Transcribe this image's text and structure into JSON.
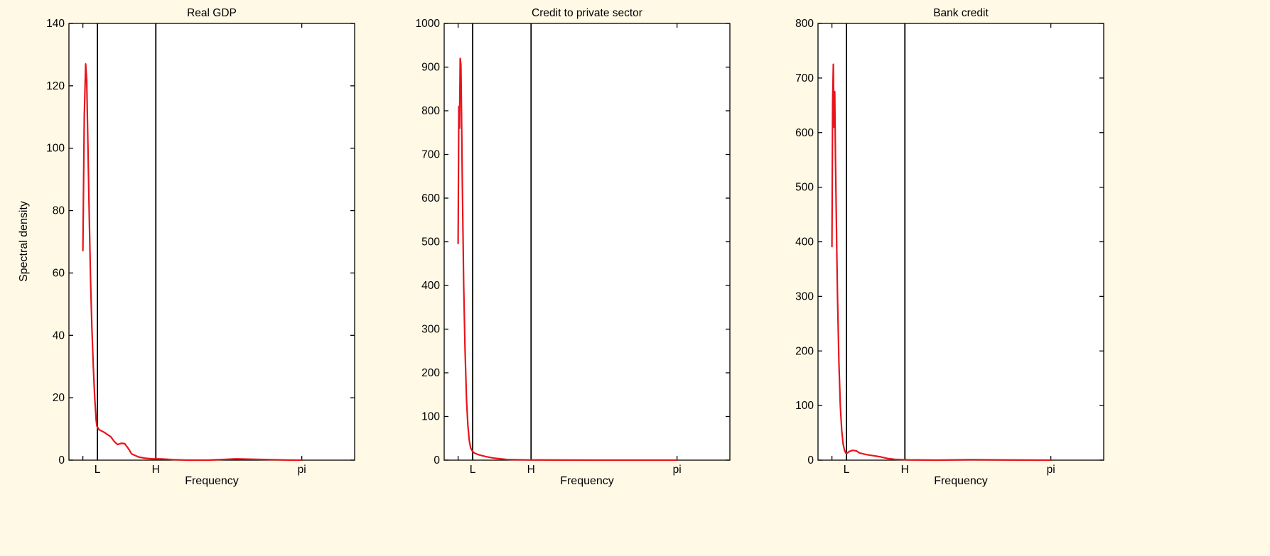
{
  "figure": {
    "background": "#FFF9E6",
    "line_color": "#E8141B",
    "ylabel": "Spectral density"
  },
  "chart_data": [
    {
      "type": "line",
      "title": "Real GDP",
      "xlabel": "Frequency",
      "ylabel": "Spectral density",
      "xlim": [
        -0.2,
        3.9
      ],
      "ylim": [
        0,
        140
      ],
      "yticks": [
        0,
        20,
        40,
        60,
        80,
        100,
        120,
        140
      ],
      "xticks": [
        {
          "value": 0.0,
          "label": ""
        },
        {
          "value": 0.209,
          "label": "L"
        },
        {
          "value": 1.047,
          "label": "H"
        },
        {
          "value": 3.1416,
          "label": "pi"
        }
      ],
      "vlines": [
        0.209,
        1.047
      ],
      "grid": false,
      "series": [
        {
          "color": "#E8141B",
          "x": [
            0.0,
            0.02,
            0.04,
            0.055,
            0.07,
            0.09,
            0.11,
            0.13,
            0.15,
            0.17,
            0.19,
            0.2,
            0.23,
            0.3,
            0.4,
            0.45,
            0.5,
            0.55,
            0.6,
            0.65,
            0.7,
            0.8,
            0.9,
            1.0,
            1.1,
            1.2,
            1.3,
            1.5,
            1.8,
            2.2,
            2.6,
            3.0,
            3.1416
          ],
          "y": [
            67,
            110,
            127,
            122,
            104,
            80,
            58,
            42,
            30,
            20,
            13,
            11,
            9.8,
            9,
            7.5,
            6,
            5,
            5.4,
            5.3,
            3.8,
            2,
            1,
            0.6,
            0.4,
            0.4,
            0.3,
            0.15,
            0,
            0,
            0.4,
            0.2,
            0,
            0
          ]
        }
      ]
    },
    {
      "type": "line",
      "title": "Credit to private sector",
      "xlabel": "Frequency",
      "ylim": [
        0,
        1000
      ],
      "xlim": [
        -0.2,
        3.9
      ],
      "yticks": [
        0,
        100,
        200,
        300,
        400,
        500,
        600,
        700,
        800,
        900,
        1000
      ],
      "xticks": [
        {
          "value": 0.0,
          "label": ""
        },
        {
          "value": 0.209,
          "label": "L"
        },
        {
          "value": 1.047,
          "label": "H"
        },
        {
          "value": 3.1416,
          "label": "pi"
        }
      ],
      "vlines": [
        0.209,
        1.047
      ],
      "grid": false,
      "series": [
        {
          "color": "#E8141B",
          "x": [
            0.0,
            0.01,
            0.02,
            0.03,
            0.04,
            0.05,
            0.06,
            0.07,
            0.08,
            0.1,
            0.12,
            0.14,
            0.16,
            0.18,
            0.2,
            0.22,
            0.25,
            0.3,
            0.4,
            0.5,
            0.6,
            0.7,
            0.8,
            1.0,
            1.5,
            2.0,
            2.5,
            3.0,
            3.1416
          ],
          "y": [
            495,
            810,
            760,
            920,
            905,
            780,
            640,
            520,
            400,
            250,
            140,
            80,
            45,
            28,
            22,
            18,
            15,
            12,
            8,
            5,
            3,
            1.5,
            1,
            0.5,
            0.2,
            0,
            0,
            0,
            0
          ]
        }
      ]
    },
    {
      "type": "line",
      "title": "Bank credit",
      "xlabel": "Frequency",
      "ylim": [
        0,
        800
      ],
      "xlim": [
        -0.2,
        3.9
      ],
      "yticks": [
        0,
        100,
        200,
        300,
        400,
        500,
        600,
        700,
        800
      ],
      "xticks": [
        {
          "value": 0.0,
          "label": ""
        },
        {
          "value": 0.209,
          "label": "L"
        },
        {
          "value": 1.047,
          "label": "H"
        },
        {
          "value": 3.1416,
          "label": "pi"
        }
      ],
      "vlines": [
        0.209,
        1.047
      ],
      "grid": false,
      "series": [
        {
          "color": "#E8141B",
          "x": [
            0.0,
            0.01,
            0.02,
            0.03,
            0.04,
            0.05,
            0.06,
            0.07,
            0.08,
            0.1,
            0.12,
            0.14,
            0.16,
            0.18,
            0.2,
            0.22,
            0.25,
            0.3,
            0.35,
            0.4,
            0.5,
            0.6,
            0.7,
            0.8,
            0.9,
            1.0,
            1.1,
            1.5,
            2.0,
            2.5,
            3.0,
            3.1416
          ],
          "y": [
            390,
            655,
            725,
            610,
            675,
            560,
            470,
            380,
            300,
            180,
            100,
            55,
            30,
            18,
            13,
            13,
            16,
            18,
            17,
            13,
            10,
            8,
            6,
            3,
            1.5,
            1,
            0.5,
            0,
            0.8,
            0.3,
            0,
            0
          ]
        }
      ]
    }
  ]
}
